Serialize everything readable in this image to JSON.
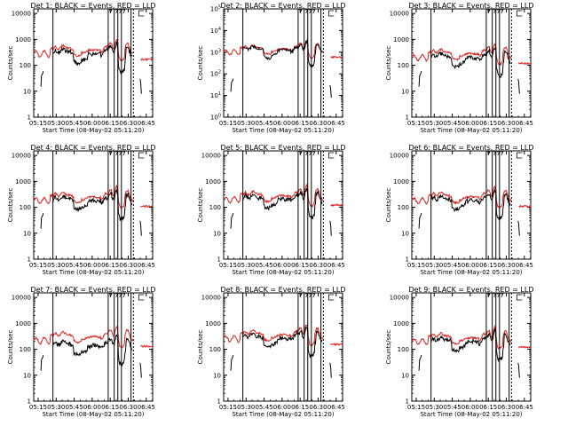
{
  "colors": {
    "events": "#000000",
    "lld": "#e0201c",
    "axis": "#000000",
    "background": "#ffffff"
  },
  "chart_data": [
    {
      "type": "line",
      "title": "Det 1:  BLACK = Events, RED = LLD",
      "xlabel": "Start Time (08-May-02 05:11:20)",
      "ylabel": "Counts/sec",
      "x_ticks": [
        "05:15",
        "05:30",
        "05:45",
        "06:00",
        "06:15",
        "06:30",
        "06:45"
      ],
      "y_ticks": [
        "1",
        "10",
        "100",
        "1000",
        "10000"
      ],
      "x_units": "minutes_after_05:11:20",
      "xlim": [
        0,
        99
      ],
      "ylim": [
        1,
        15000
      ],
      "yscale": "log",
      "vlines": [
        16,
        62,
        67,
        70,
        73,
        81,
        83
      ],
      "red_base": 280,
      "black_scale": 0.72,
      "black_start": 16,
      "black_end": 82,
      "gap_start": 83,
      "red_resume": 89
    },
    {
      "type": "line",
      "title": "Det 2:  BLACK = Events, RED = LLD",
      "xlabel": "Start Time (08-May-02 05:11:20)",
      "ylabel": "Counts/sec",
      "x_ticks": [
        "05:15",
        "05:30",
        "05:45",
        "06:00",
        "06:15",
        "06:30",
        "06:45"
      ],
      "y_ticks": [
        "10^0",
        "10^1",
        "10^2",
        "10^3",
        "10^4",
        "10^5"
      ],
      "x_units": "minutes_after_05:11:20",
      "xlim": [
        0,
        99
      ],
      "ylim": [
        1,
        100000
      ],
      "yscale": "log",
      "vlines": [
        16,
        62,
        67,
        70,
        73,
        81,
        83
      ],
      "red_base": 1000,
      "black_scale": 0.9,
      "black_start": 16,
      "black_end": 82,
      "gap_start": 83,
      "red_resume": 89
    },
    {
      "type": "line",
      "title": "Det 3:  BLACK = Events, RED = LLD",
      "xlabel": "Start Time (08-May-02 05:11:20)",
      "ylabel": "Counts/sec",
      "x_ticks": [
        "05:15",
        "05:30",
        "05:45",
        "06:00",
        "06:15",
        "06:30",
        "06:45"
      ],
      "y_ticks": [
        "1",
        "10",
        "100",
        "1000",
        "10000"
      ],
      "x_units": "minutes_after_05:11:20",
      "xlim": [
        0,
        99
      ],
      "ylim": [
        1,
        15000
      ],
      "yscale": "log",
      "vlines": [
        16,
        62,
        67,
        70,
        73,
        81,
        83
      ],
      "red_base": 200,
      "black_scale": 0.7,
      "black_start": 16,
      "black_end": 82,
      "gap_start": 83,
      "red_resume": 89
    },
    {
      "type": "line",
      "title": "Det 4:  BLACK = Events, RED = LLD",
      "xlabel": "Start Time (08-May-02 05:11:20)",
      "ylabel": "Counts/sec",
      "x_ticks": [
        "05:15",
        "05:30",
        "05:45",
        "06:00",
        "06:15",
        "06:30",
        "06:45"
      ],
      "y_ticks": [
        "1",
        "10",
        "100",
        "1000",
        "10000"
      ],
      "x_units": "minutes_after_05:11:20",
      "xlim": [
        0,
        99
      ],
      "ylim": [
        1,
        15000
      ],
      "yscale": "log",
      "vlines": [
        16,
        62,
        67,
        70,
        73,
        81,
        83
      ],
      "red_base": 180,
      "black_scale": 0.72,
      "black_start": 16,
      "black_end": 82,
      "gap_start": 83,
      "red_resume": 89
    },
    {
      "type": "line",
      "title": "Det 5:  BLACK = Events, RED = LLD",
      "xlabel": "Start Time (08-May-02 05:11:20)",
      "ylabel": "Counts/sec",
      "x_ticks": [
        "05:15",
        "05:30",
        "05:45",
        "06:00",
        "06:15",
        "06:30",
        "06:45"
      ],
      "y_ticks": [
        "1",
        "10",
        "100",
        "1000",
        "10000"
      ],
      "x_units": "minutes_after_05:11:20",
      "xlim": [
        0,
        99
      ],
      "ylim": [
        1,
        15000
      ],
      "yscale": "log",
      "vlines": [
        16,
        62,
        67,
        70,
        73,
        81,
        83
      ],
      "red_base": 200,
      "black_scale": 0.75,
      "black_start": 16,
      "black_end": 82,
      "gap_start": 83,
      "red_resume": 89
    },
    {
      "type": "line",
      "title": "Det 6:  BLACK = Events, RED = LLD",
      "xlabel": "Start Time (08-May-02 05:11:20)",
      "ylabel": "Counts/sec",
      "x_ticks": [
        "05:15",
        "05:30",
        "05:45",
        "06:00",
        "06:15",
        "06:30",
        "06:45"
      ],
      "y_ticks": [
        "1",
        "10",
        "100",
        "1000",
        "10000"
      ],
      "x_units": "minutes_after_05:11:20",
      "xlim": [
        0,
        99
      ],
      "ylim": [
        1,
        15000
      ],
      "yscale": "log",
      "vlines": [
        16,
        62,
        67,
        70,
        73,
        81,
        83
      ],
      "red_base": 180,
      "black_scale": 0.72,
      "black_start": 16,
      "black_end": 82,
      "gap_start": 83,
      "red_resume": 89
    },
    {
      "type": "line",
      "title": "Det 7:  BLACK = Events, RED = LLD",
      "xlabel": "Start Time (08-May-02 05:11:20)",
      "ylabel": "Counts/sec",
      "x_ticks": [
        "05:15",
        "05:30",
        "05:45",
        "06:00",
        "06:15",
        "06:30",
        "06:45"
      ],
      "y_ticks": [
        "1",
        "10",
        "100",
        "1000",
        "10000"
      ],
      "x_units": "minutes_after_05:11:20",
      "xlim": [
        0,
        99
      ],
      "ylim": [
        1,
        15000
      ],
      "yscale": "log",
      "vlines": [
        16,
        62,
        67,
        70,
        73,
        81,
        83
      ],
      "red_base": 220,
      "black_scale": 0.45,
      "black_start": 16,
      "black_end": 82,
      "gap_start": 83,
      "red_resume": 89
    },
    {
      "type": "line",
      "title": "Det 8:  BLACK = Events, RED = LLD",
      "xlabel": "Start Time (08-May-02 05:11:20)",
      "ylabel": "Counts/sec",
      "x_ticks": [
        "05:15",
        "05:30",
        "05:45",
        "06:00",
        "06:15",
        "06:30",
        "06:45"
      ],
      "y_ticks": [
        "1",
        "10",
        "100",
        "1000",
        "10000"
      ],
      "x_units": "minutes_after_05:11:20",
      "xlim": [
        0,
        99
      ],
      "ylim": [
        1,
        15000
      ],
      "yscale": "log",
      "vlines": [
        16,
        62,
        67,
        70,
        73,
        81,
        83
      ],
      "red_base": 260,
      "black_scale": 0.75,
      "black_start": 16,
      "black_end": 82,
      "gap_start": 83,
      "red_resume": 89
    },
    {
      "type": "line",
      "title": "Det 9:  BLACK = Events, RED = LLD",
      "xlabel": "Start Time (08-May-02 05:11:20)",
      "ylabel": "Counts/sec",
      "x_ticks": [
        "05:15",
        "05:30",
        "05:45",
        "06:00",
        "06:15",
        "06:30",
        "06:45"
      ],
      "y_ticks": [
        "1",
        "10",
        "100",
        "1000",
        "10000"
      ],
      "x_units": "minutes_after_05:11:20",
      "xlim": [
        0,
        99
      ],
      "ylim": [
        1,
        15000
      ],
      "yscale": "log",
      "vlines": [
        16,
        62,
        67,
        70,
        73,
        81,
        83
      ],
      "red_base": 200,
      "black_scale": 0.72,
      "black_start": 16,
      "black_end": 82,
      "gap_start": 83,
      "red_resume": 89
    }
  ]
}
